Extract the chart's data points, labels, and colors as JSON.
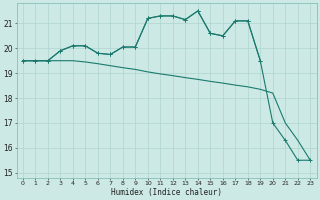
{
  "xlabel": "Humidex (Indice chaleur)",
  "background_color": "#cce9e5",
  "grid_color": "#aed4cf",
  "line_color": "#1a7a6e",
  "xlim": [
    -0.5,
    23.5
  ],
  "ylim": [
    14.8,
    21.8
  ],
  "yticks": [
    15,
    16,
    17,
    18,
    19,
    20,
    21
  ],
  "xticks": [
    0,
    1,
    2,
    3,
    4,
    5,
    6,
    7,
    8,
    9,
    10,
    11,
    12,
    13,
    14,
    15,
    16,
    17,
    18,
    19,
    20,
    21,
    22,
    23
  ],
  "line1_x": [
    0,
    1,
    2,
    3,
    4,
    5,
    6,
    7,
    8,
    9,
    10,
    11,
    12,
    13,
    14,
    15,
    16,
    17,
    18,
    19
  ],
  "line1_y": [
    19.5,
    19.5,
    19.5,
    19.9,
    20.1,
    20.1,
    19.8,
    19.75,
    20.05,
    20.05,
    21.2,
    21.3,
    21.3,
    21.15,
    21.5,
    20.6,
    20.5,
    21.1,
    21.1,
    19.5
  ],
  "line2_x": [
    0,
    1,
    2,
    3,
    4,
    5,
    6,
    7,
    8,
    9,
    10,
    11,
    12,
    13,
    14,
    15,
    16,
    17,
    18,
    19,
    20,
    21,
    22,
    23
  ],
  "line2_y": [
    19.5,
    19.5,
    19.5,
    19.9,
    20.1,
    20.1,
    19.8,
    19.75,
    20.05,
    20.05,
    21.2,
    21.3,
    21.3,
    21.15,
    21.5,
    20.6,
    20.5,
    21.1,
    21.1,
    19.5,
    17.0,
    16.3,
    15.5,
    15.5
  ],
  "line3_x": [
    0,
    1,
    2,
    3,
    4,
    5,
    6,
    7,
    8,
    9,
    10,
    11,
    12,
    13,
    14,
    15,
    16,
    17,
    18,
    19,
    20,
    21,
    22,
    23
  ],
  "line3_y": [
    19.5,
    19.5,
    19.5,
    19.5,
    19.5,
    19.45,
    19.38,
    19.3,
    19.22,
    19.15,
    19.05,
    18.97,
    18.9,
    18.82,
    18.75,
    18.67,
    18.6,
    18.52,
    18.45,
    18.35,
    18.2,
    17.0,
    16.3,
    15.5
  ]
}
